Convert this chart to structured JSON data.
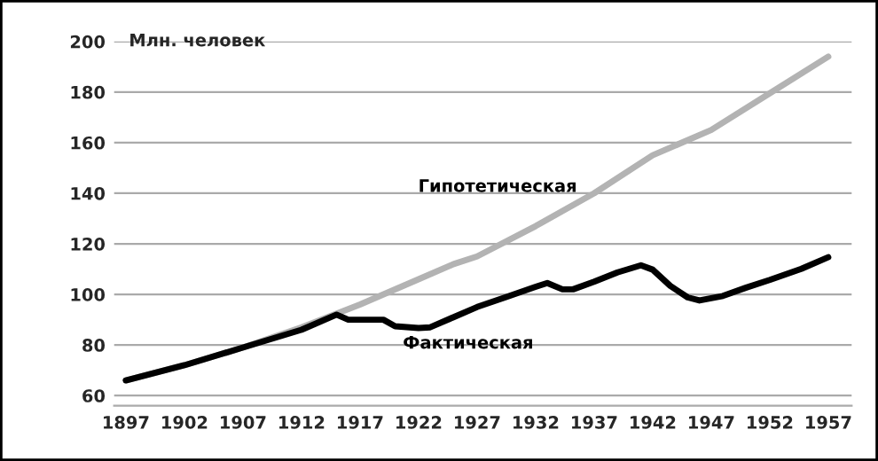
{
  "chart_data": {
    "type": "line",
    "ylabel": "Млн. человек",
    "xlim": [
      1896,
      1959
    ],
    "ylim": [
      56,
      200
    ],
    "xticks": [
      1897,
      1902,
      1907,
      1912,
      1917,
      1922,
      1927,
      1932,
      1937,
      1942,
      1947,
      1952,
      1957
    ],
    "yticks": [
      60,
      80,
      100,
      120,
      140,
      160,
      180,
      200
    ],
    "grid": "y",
    "legend": false,
    "marker": "none",
    "line_style": "solid",
    "series": [
      {
        "name": "Гипотетическая",
        "color": "#b3b3b3",
        "x": [
          1897,
          1902,
          1907,
          1912,
          1917,
          1922,
          1925,
          1927,
          1932,
          1937,
          1942,
          1947,
          1952,
          1957
        ],
        "values": [
          66,
          72,
          79,
          87,
          96,
          106,
          112,
          115,
          127,
          140,
          155,
          165,
          179.5,
          194
        ]
      },
      {
        "name": "Фактическая",
        "color": "#000000",
        "x": [
          1897,
          1902,
          1907,
          1912,
          1915,
          1916,
          1919,
          1920,
          1922,
          1923,
          1925,
          1927,
          1929.5,
          1932,
          1933,
          1934.3,
          1935.2,
          1937,
          1939,
          1941,
          1942,
          1943.5,
          1945,
          1946,
          1948,
          1950,
          1952,
          1954.7,
          1957
        ],
        "values": [
          66,
          72,
          79,
          86,
          92,
          90,
          90,
          87.4,
          86.7,
          87,
          91,
          95,
          99,
          103,
          104.5,
          102,
          102,
          105,
          108.7,
          111.5,
          109.8,
          103.4,
          98.8,
          97.6,
          99.4,
          102.7,
          105.7,
          110.1,
          114.7
        ]
      }
    ]
  }
}
